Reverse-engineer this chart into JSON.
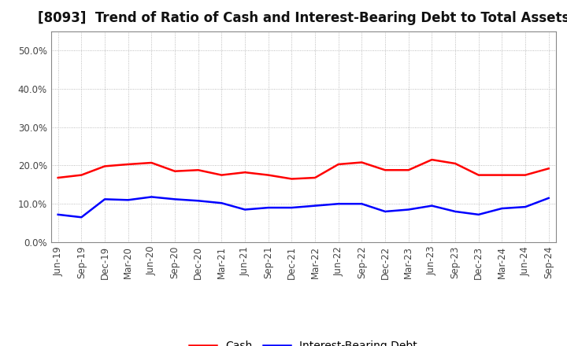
{
  "title": "[8093]  Trend of Ratio of Cash and Interest-Bearing Debt to Total Assets",
  "x_labels": [
    "Jun-19",
    "Sep-19",
    "Dec-19",
    "Mar-20",
    "Jun-20",
    "Sep-20",
    "Dec-20",
    "Mar-21",
    "Jun-21",
    "Sep-21",
    "Dec-21",
    "Mar-22",
    "Jun-22",
    "Sep-22",
    "Dec-22",
    "Mar-23",
    "Jun-23",
    "Sep-23",
    "Dec-23",
    "Mar-24",
    "Jun-24",
    "Sep-24"
  ],
  "cash": [
    16.8,
    17.5,
    19.8,
    20.3,
    20.7,
    18.5,
    18.8,
    17.5,
    18.2,
    17.5,
    16.5,
    16.8,
    20.3,
    20.8,
    18.8,
    18.8,
    21.5,
    20.5,
    17.5,
    17.5,
    17.5,
    19.2
  ],
  "ibd": [
    7.2,
    6.5,
    11.2,
    11.0,
    11.8,
    11.2,
    10.8,
    10.2,
    8.5,
    9.0,
    9.0,
    9.5,
    10.0,
    10.0,
    8.0,
    8.5,
    9.5,
    8.0,
    7.2,
    8.8,
    9.2,
    11.5
  ],
  "cash_color": "#ff0000",
  "ibd_color": "#0000ff",
  "ylim": [
    0,
    55
  ],
  "yticks": [
    0,
    10,
    20,
    30,
    40,
    50
  ],
  "ytick_labels": [
    "0.0%",
    "10.0%",
    "20.0%",
    "30.0%",
    "40.0%",
    "50.0%"
  ],
  "background_color": "#ffffff",
  "grid_color": "#aaaaaa",
  "legend_cash": "Cash",
  "legend_ibd": "Interest-Bearing Debt",
  "title_fontsize": 12,
  "axis_fontsize": 8.5,
  "legend_fontsize": 10
}
